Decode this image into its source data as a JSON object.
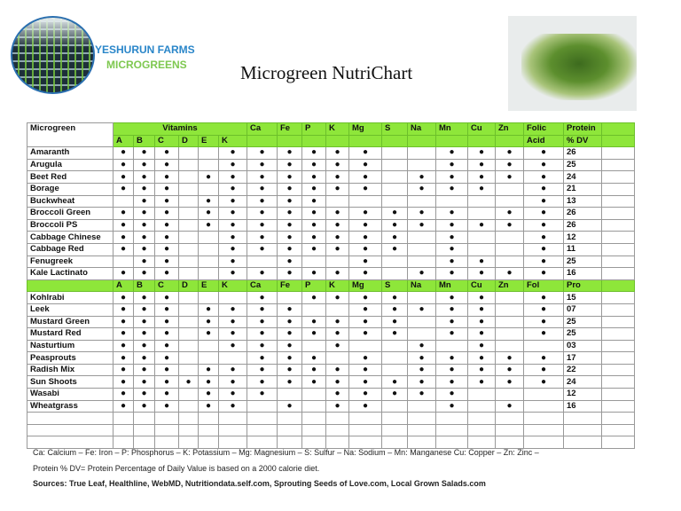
{
  "brand": {
    "line1": "YESHURUN FARMS",
    "line2": "MICROGREENS"
  },
  "title": "Microgreen NutriChart",
  "header": {
    "microgreen": "Microgreen",
    "vitamins": "Vitamins",
    "vit": [
      "A",
      "B",
      "C",
      "D",
      "E",
      "K"
    ],
    "minerals": [
      "Ca",
      "Fe",
      "P",
      "K",
      "Mg",
      "S",
      "Na",
      "Mn",
      "Cu",
      "Zn"
    ],
    "folic1": "Folic",
    "folic2": "Acid",
    "protein1": "Protein",
    "protein2": "% DV"
  },
  "header2": {
    "cols": [
      "A",
      "B",
      "C",
      "D",
      "E",
      "K",
      "Ca",
      "Fe",
      "P",
      "K",
      "Mg",
      "S",
      "Na",
      "Mn",
      "Cu",
      "Zn",
      "Fol"
    ],
    "protein": "Pro"
  },
  "rows1": [
    {
      "name": "Amaranth",
      "d": "11100111111001111",
      "p": "26"
    },
    {
      "name": "Arugula",
      "d": "11100111111001111",
      "p": "25"
    },
    {
      "name": "Beet Red",
      "d": "11101111111011111",
      "p": "24"
    },
    {
      "name": "Borage",
      "d": "11100111111011101",
      "p": "21"
    },
    {
      "name": "Buckwheat",
      "d": "01101111100000001",
      "p": "13"
    },
    {
      "name": "Broccoli  Green",
      "d": "11101111111111011",
      "p": "26"
    },
    {
      "name": "Broccoli PS",
      "d": "11101111111111111",
      "p": "26"
    },
    {
      "name": "Cabbage Chinese",
      "d": "11100111111101001",
      "p": "12"
    },
    {
      "name": "Cabbage Red",
      "d": "11100111111101001",
      "p": "11"
    },
    {
      "name": "Fenugreek",
      "d": "01100101001001101",
      "p": "25"
    },
    {
      "name": "Kale Lactinato",
      "d": "11100111111011111",
      "p": "16"
    }
  ],
  "rows2": [
    {
      "name": "Kohlrabi",
      "d": "11100010111101101",
      "p": "15"
    },
    {
      "name": "Leek",
      "d": "11101111001111101",
      "p": "07"
    },
    {
      "name": "Mustard Green",
      "d": "11101111111101101",
      "p": "25"
    },
    {
      "name": "Mustard Red",
      "d": "11101111111101101",
      "p": "25"
    },
    {
      "name": "Nasturtium",
      "d": "11100111010010100",
      "p": "03"
    },
    {
      "name": "Peasprouts",
      "d": "11100011101011111",
      "p": "17"
    },
    {
      "name": "Radish Mix",
      "d": "11101111111011111",
      "p": "22"
    },
    {
      "name": "Sun Shoots",
      "d": "11111111111111111",
      "p": "24"
    },
    {
      "name": "Wasabi",
      "d": "11101110011111000",
      "p": "12"
    },
    {
      "name": "Wheatgrass",
      "d": "11101101011001010",
      "p": "16"
    }
  ],
  "dot_symbol": "●",
  "footer": {
    "legend": "Ca: Calcium – Fe: Iron – P: Phosphorus – K: Potassium – Mg: Magnesium – S: Sulfur – Na: Sodium – Mn: Manganese Cu: Copper – Zn: Zinc –",
    "protein_note": "Protein % DV= Protein Percentage of Daily Value is based on a 2000 calorie diet.",
    "sources": "Sources: True Leaf, Healthline, WebMD, Nutritiondata.self.com, Sprouting Seeds of Love.com, Local Grown Salads.com"
  },
  "colors": {
    "header_green": "#8ee63a",
    "brand_blue": "#2a86c9",
    "brand_green": "#7ec850"
  }
}
